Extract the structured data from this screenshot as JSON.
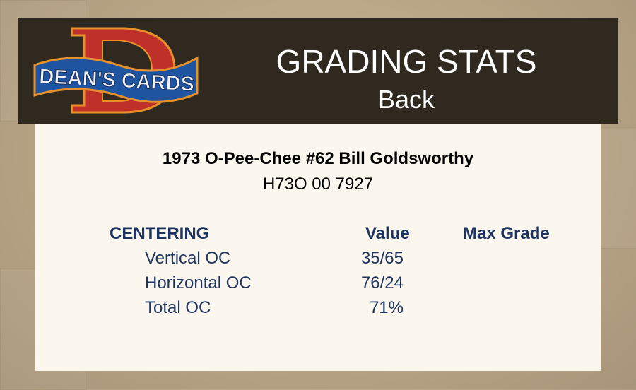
{
  "logo": {
    "text": "DEAN'S CARDS",
    "letter": "D"
  },
  "header": {
    "title": "GRADING STATS",
    "subtitle": "Back"
  },
  "card": {
    "name": "1973 O-Pee-Chee #62 Bill Goldsworthy",
    "cert": "H73O 00 7927"
  },
  "table": {
    "section": "CENTERING",
    "value_header": "Value",
    "max_grade_header": "Max Grade",
    "rows": [
      {
        "label": "Vertical OC",
        "value": "35/65"
      },
      {
        "label": "Horizontal OC",
        "value": "76/24"
      },
      {
        "label": "Total OC",
        "value": "71%"
      }
    ]
  },
  "colors": {
    "header_bg": "#2f2920",
    "panel_bg": "#fcf7ee",
    "text_navy": "#1e3460"
  }
}
